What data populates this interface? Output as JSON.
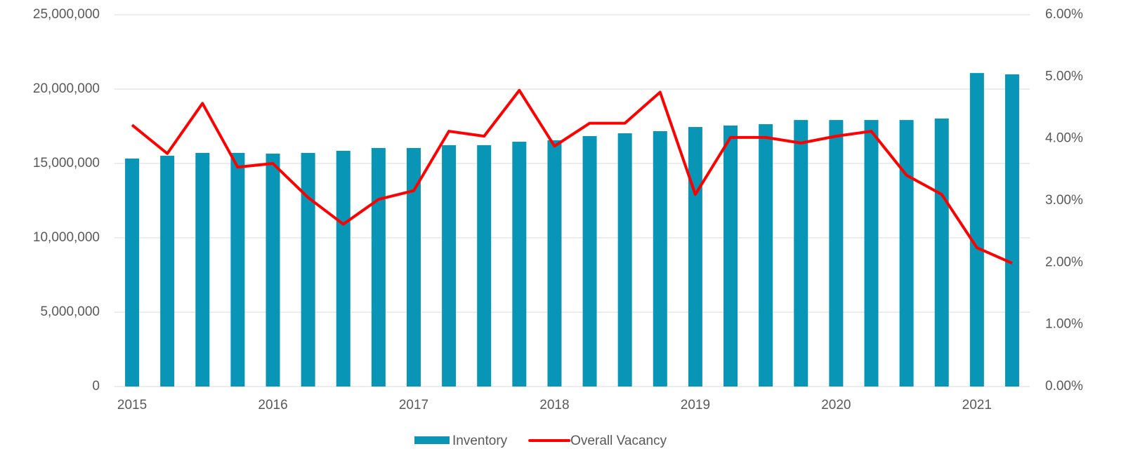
{
  "chart_data": {
    "type": "bar",
    "categories": [
      "2015",
      null,
      null,
      null,
      "2016",
      null,
      null,
      null,
      "2017",
      null,
      null,
      null,
      "2018",
      null,
      null,
      null,
      "2019",
      null,
      null,
      null,
      "2020",
      null,
      null,
      null,
      "2021",
      null
    ],
    "series": [
      {
        "name": "Inventory",
        "type": "bar",
        "color": "#0995b5",
        "values": [
          15330000,
          15520000,
          15710000,
          15710000,
          15660000,
          15710000,
          15850000,
          16040000,
          16040000,
          16230000,
          16230000,
          16460000,
          16560000,
          16840000,
          17030000,
          17170000,
          17450000,
          17550000,
          17640000,
          17920000,
          17920000,
          17920000,
          17920000,
          18020000,
          21080000,
          20990000
        ]
      },
      {
        "name": "Overall Vacancy",
        "type": "line",
        "axis": "y2",
        "color": "#ff0000",
        "values": [
          4.22,
          3.76,
          4.57,
          3.54,
          3.6,
          3.05,
          2.62,
          3.02,
          3.16,
          4.12,
          4.04,
          4.78,
          3.88,
          4.25,
          4.25,
          4.75,
          3.1,
          4.02,
          4.02,
          3.93,
          4.04,
          4.12,
          3.41,
          3.1,
          2.24,
          1.99
        ]
      }
    ],
    "ylim": [
      0,
      25000000
    ],
    "yticks": [
      0,
      {
        "value": 5000000,
        "label": "5,000,000"
      },
      {
        "value": 10000000,
        "label": "10,000,000"
      },
      {
        "value": 15000000,
        "label": "15,000,000"
      },
      {
        "value": 20000000,
        "label": "20,000,000"
      },
      {
        "value": 25000000,
        "label": "25,000,000"
      }
    ],
    "y2lim": [
      0,
      6
    ],
    "y2ticks": [
      {
        "value": 0,
        "label": "0.00%"
      },
      {
        "value": 1,
        "label": "1.00%"
      },
      {
        "value": 2,
        "label": "2.00%"
      },
      {
        "value": 3,
        "label": "3.00%"
      },
      {
        "value": 4,
        "label": "4.00%"
      },
      {
        "value": 5,
        "label": "5.00%"
      },
      {
        "value": 6,
        "label": "6.00%"
      }
    ],
    "grid": true,
    "legend": "bottom"
  }
}
